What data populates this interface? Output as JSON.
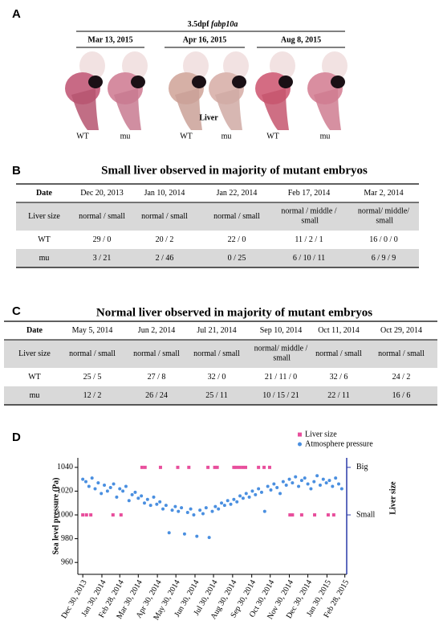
{
  "panel_a": {
    "label": "A",
    "title": "3.5dpf",
    "gene": "fabp10a",
    "dates": [
      "Mar 13, 2015",
      "Apr 16, 2015",
      "Aug 8, 2015"
    ],
    "organ_label": "Liver",
    "sample_labels": [
      "WT",
      "mu",
      "WT",
      "mu",
      "WT",
      "mu"
    ]
  },
  "panel_b": {
    "label": "B",
    "title": "Small liver observed in majority of mutant embryos",
    "rows": [
      [
        "Date",
        "Dec 20, 2013",
        "Jan 10, 2014",
        "Jan 22, 2014",
        "Feb 17, 2014",
        "Mar 2, 2014"
      ],
      [
        "Liver size",
        "normal / small",
        "normal / small",
        "normal / small",
        "normal / middle / small",
        "normal/ middle/ small"
      ],
      [
        "WT",
        "29 / 0",
        "20 / 2",
        "22 / 0",
        "11 / 2 / 1",
        "16 / 0 / 0"
      ],
      [
        "mu",
        "3 / 21",
        "2 / 46",
        "0 / 25",
        "6 / 10 / 11",
        "6 / 9 / 9"
      ]
    ]
  },
  "panel_c": {
    "label": "C",
    "title": "Normal liver observed in majority of mutant embryos",
    "rows": [
      [
        "Date",
        "May 5, 2014",
        "Jun 2, 2014",
        "Jul 21, 2014",
        "Sep 10, 2014",
        "Oct 11, 2014",
        "Oct 29, 2014"
      ],
      [
        "Liver size",
        "normal / small",
        "normal / small",
        "normal / small",
        "normal/ middle / small",
        "normal / small",
        "normal / small"
      ],
      [
        "WT",
        "25 / 5",
        "27 / 8",
        "32 / 0",
        "21 / 11 / 0",
        "32 / 6",
        "24 / 2"
      ],
      [
        "mu",
        "12 / 2",
        "26 / 24",
        "25 / 11",
        "10 / 15 / 21",
        "22 / 11",
        "16 / 6"
      ]
    ]
  },
  "chart_data": {
    "type": "scatter",
    "panel_label": "D",
    "y_label": "Sea level pressure (Pa)",
    "y2_label": "Liver size",
    "xlim": [
      "2013-12-22",
      "2015-03-03"
    ],
    "xticks": [
      {
        "value": "2013-12-30",
        "label": "Dec 30, 2013"
      },
      {
        "value": "2014-01-30",
        "label": "Jan 30, 2014"
      },
      {
        "value": "2014-02-28",
        "label": "Feb 28, 2014"
      },
      {
        "value": "2014-03-30",
        "label": "Mar 30, 2014"
      },
      {
        "value": "2014-04-30",
        "label": "Apr 30, 2014"
      },
      {
        "value": "2014-05-30",
        "label": "May 30, 2014"
      },
      {
        "value": "2014-06-30",
        "label": "Jun 30, 2014"
      },
      {
        "value": "2014-07-30",
        "label": "Jul 30, 2014"
      },
      {
        "value": "2014-08-30",
        "label": "Aug 30, 2014"
      },
      {
        "value": "2014-09-30",
        "label": "Sep 30, 2014"
      },
      {
        "value": "2014-10-30",
        "label": "Oct 30, 2014"
      },
      {
        "value": "2014-11-30",
        "label": "Nov 30, 2014"
      },
      {
        "value": "2014-12-30",
        "label": "Dec 30, 2014"
      },
      {
        "value": "2015-01-30",
        "label": "Jan 30, 2015"
      },
      {
        "value": "2015-02-28",
        "label": "Feb 28, 2015"
      }
    ],
    "ylim": [
      950,
      1048
    ],
    "yticks": [
      960,
      980,
      1000,
      1020,
      1040
    ],
    "y2lim": [
      -1.25,
      1.2
    ],
    "y2ticks": [
      {
        "value": 1,
        "label": "Big"
      },
      {
        "value": 0,
        "label": "Small"
      }
    ],
    "legend": "top-right",
    "series": [
      {
        "name": "Liver size",
        "color": "#e84e9c",
        "axis": "y2",
        "x": [
          "2013-12-30",
          "2014-01-05",
          "2014-01-12",
          "2014-02-17",
          "2014-03-02",
          "2014-04-05",
          "2014-04-10",
          "2014-05-05",
          "2014-06-02",
          "2014-06-20",
          "2014-07-21",
          "2014-08-01",
          "2014-08-05",
          "2014-09-01",
          "2014-09-05",
          "2014-09-10",
          "2014-09-15",
          "2014-09-20",
          "2014-10-11",
          "2014-10-20",
          "2014-10-29",
          "2014-12-01",
          "2014-12-05",
          "2014-12-20",
          "2015-01-10",
          "2015-02-01",
          "2015-02-10"
        ],
        "values": [
          0,
          0,
          0,
          0,
          0,
          1,
          1,
          1,
          1,
          1,
          1,
          1,
          1,
          1,
          1,
          1,
          1,
          1,
          1,
          1,
          1,
          0,
          0,
          0,
          0,
          0,
          0
        ]
      },
      {
        "name": "Atmosphere pressure",
        "color": "#4a8fe0",
        "x": [
          "2013-12-30",
          "2014-01-04",
          "2014-01-09",
          "2014-01-14",
          "2014-01-19",
          "2014-01-24",
          "2014-01-29",
          "2014-02-03",
          "2014-02-08",
          "2014-02-13",
          "2014-02-18",
          "2014-02-23",
          "2014-02-28",
          "2014-03-05",
          "2014-03-10",
          "2014-03-15",
          "2014-03-20",
          "2014-03-25",
          "2014-03-30",
          "2014-04-04",
          "2014-04-09",
          "2014-04-14",
          "2014-04-19",
          "2014-04-24",
          "2014-04-29",
          "2014-05-04",
          "2014-05-09",
          "2014-05-14",
          "2014-05-19",
          "2014-05-24",
          "2014-05-29",
          "2014-06-03",
          "2014-06-08",
          "2014-06-13",
          "2014-06-18",
          "2014-06-23",
          "2014-06-28",
          "2014-07-03",
          "2014-07-08",
          "2014-07-13",
          "2014-07-18",
          "2014-07-23",
          "2014-07-28",
          "2014-08-02",
          "2014-08-07",
          "2014-08-12",
          "2014-08-17",
          "2014-08-22",
          "2014-08-27",
          "2014-09-01",
          "2014-09-06",
          "2014-09-11",
          "2014-09-16",
          "2014-09-21",
          "2014-09-26",
          "2014-10-01",
          "2014-10-06",
          "2014-10-11",
          "2014-10-16",
          "2014-10-21",
          "2014-10-26",
          "2014-10-31",
          "2014-11-05",
          "2014-11-10",
          "2014-11-15",
          "2014-11-20",
          "2014-11-25",
          "2014-11-30",
          "2014-12-05",
          "2014-12-10",
          "2014-12-15",
          "2014-12-20",
          "2014-12-25",
          "2014-12-30",
          "2015-01-04",
          "2015-01-09",
          "2015-01-14",
          "2015-01-19",
          "2015-01-24",
          "2015-01-29",
          "2015-02-03",
          "2015-02-08",
          "2015-02-13",
          "2015-02-18",
          "2015-02-23"
        ],
        "values": [
          1030,
          1028,
          1024,
          1031,
          1022,
          1027,
          1018,
          1025,
          1020,
          1023,
          1026,
          1015,
          1022,
          1020,
          1024,
          1012,
          1017,
          1019,
          1014,
          1016,
          1010,
          1013,
          1008,
          1015,
          1009,
          1011,
          1005,
          1008,
          985,
          1004,
          1007,
          1003,
          1006,
          984,
          1002,
          1005,
          1000,
          982,
          1004,
          1001,
          1006,
          981,
          1003,
          1007,
          1005,
          1010,
          1008,
          1012,
          1009,
          1013,
          1011,
          1016,
          1014,
          1018,
          1015,
          1020,
          1017,
          1022,
          1019,
          1003,
          1024,
          1021,
          1026,
          1023,
          1018,
          1028,
          1025,
          1030,
          1027,
          1032,
          1024,
          1029,
          1031,
          1026,
          1022,
          1028,
          1033,
          1025,
          1030,
          1027,
          1029,
          1024,
          1031,
          1026,
          1022
        ]
      }
    ]
  }
}
